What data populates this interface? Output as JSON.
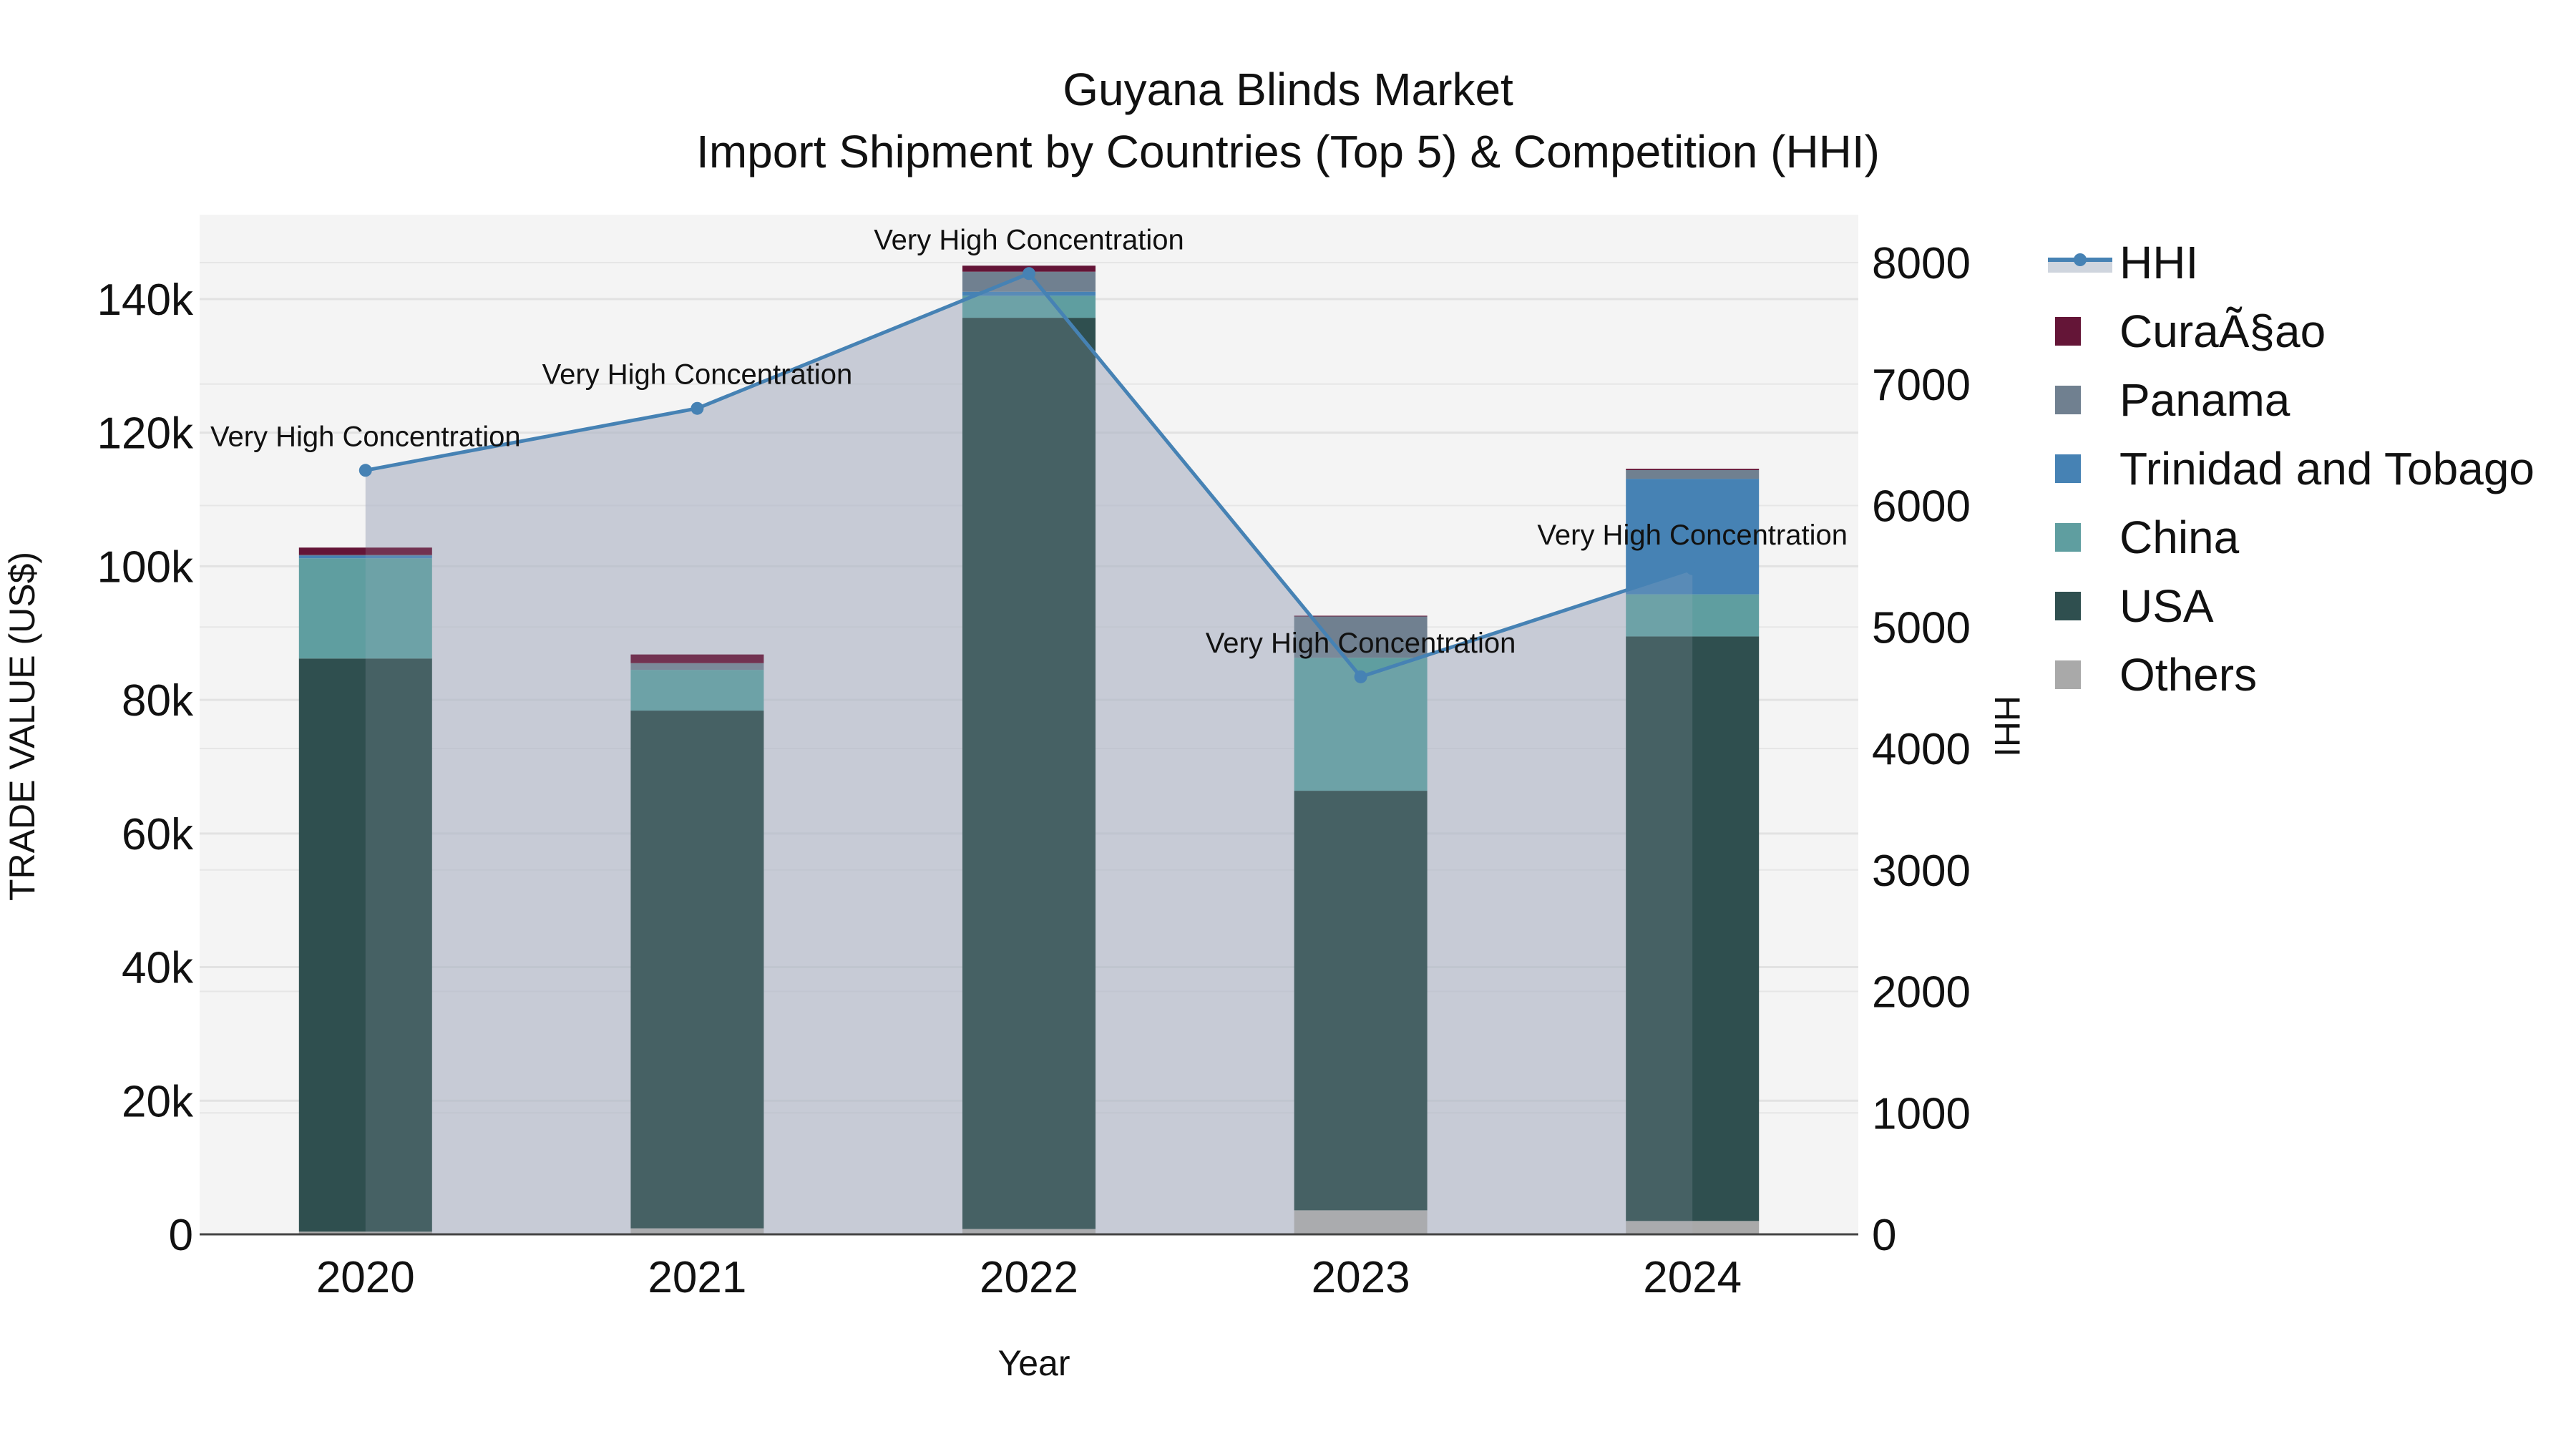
{
  "title": {
    "line1": "Guyana Blinds Market",
    "line2": "Import Shipment by Countries (Top 5) & Competition (HHI)"
  },
  "axes": {
    "x_title": "Year",
    "y_left_title": "TRADE VALUE (US$)",
    "y_right_title": "HHI",
    "y_left_ticks": [
      "0",
      "20k",
      "40k",
      "60k",
      "80k",
      "100k",
      "120k",
      "140k"
    ],
    "y_right_ticks": [
      "0",
      "1000",
      "2000",
      "3000",
      "4000",
      "5000",
      "6000",
      "7000",
      "8000"
    ]
  },
  "legend": [
    {
      "name": "HHI",
      "color": "#4682B4",
      "type": "line"
    },
    {
      "name": "CuraÃ§ao",
      "color": "#641537",
      "type": "bar"
    },
    {
      "name": "Panama",
      "color": "#708090",
      "type": "bar"
    },
    {
      "name": "Trinidad and Tobago",
      "color": "#4682B4",
      "type": "bar"
    },
    {
      "name": "China",
      "color": "#5F9EA0",
      "type": "bar"
    },
    {
      "name": "USA",
      "color": "#2F4F4F",
      "type": "bar"
    },
    {
      "name": "Others",
      "color": "#A9A9A9",
      "type": "bar"
    }
  ],
  "chart_data": {
    "type": "bar",
    "title": "Guyana Blinds Market — Import Shipment by Countries (Top 5) & Competition (HHI)",
    "xlabel": "Year",
    "ylabel": "TRADE VALUE (US$)",
    "y2label": "HHI",
    "ylim": [
      0,
      152000
    ],
    "y2lim": [
      0,
      8400
    ],
    "stacked": true,
    "legend_position": "right",
    "grid": true,
    "categories": [
      "2020",
      "2021",
      "2022",
      "2023",
      "2024"
    ],
    "series": [
      {
        "name": "Others",
        "color": "#A9A9A9",
        "values": [
          400,
          900,
          800,
          3600,
          2000
        ]
      },
      {
        "name": "USA",
        "color": "#2F4F4F",
        "values": [
          85800,
          77500,
          136400,
          62800,
          87500
        ]
      },
      {
        "name": "China",
        "color": "#5F9EA0",
        "values": [
          15000,
          6100,
          3300,
          19900,
          6300
        ]
      },
      {
        "name": "Trinidad and Tobago",
        "color": "#4682B4",
        "values": [
          400,
          0,
          600,
          0,
          17300
        ]
      },
      {
        "name": "Panama",
        "color": "#708090",
        "values": [
          100,
          1000,
          3000,
          6200,
          1300
        ]
      },
      {
        "name": "CuraÃ§ao",
        "color": "#641537",
        "values": [
          1100,
          1300,
          900,
          100,
          200
        ]
      }
    ],
    "line_series": {
      "name": "HHI",
      "axis": "right",
      "color": "#4682B4",
      "values": [
        6290,
        6800,
        7910,
        4590,
        5480
      ],
      "annotations": [
        "Very High Concentration",
        "Very High Concentration",
        "Very High Concentration",
        "Very High Concentration",
        "Very High Concentration"
      ]
    }
  }
}
